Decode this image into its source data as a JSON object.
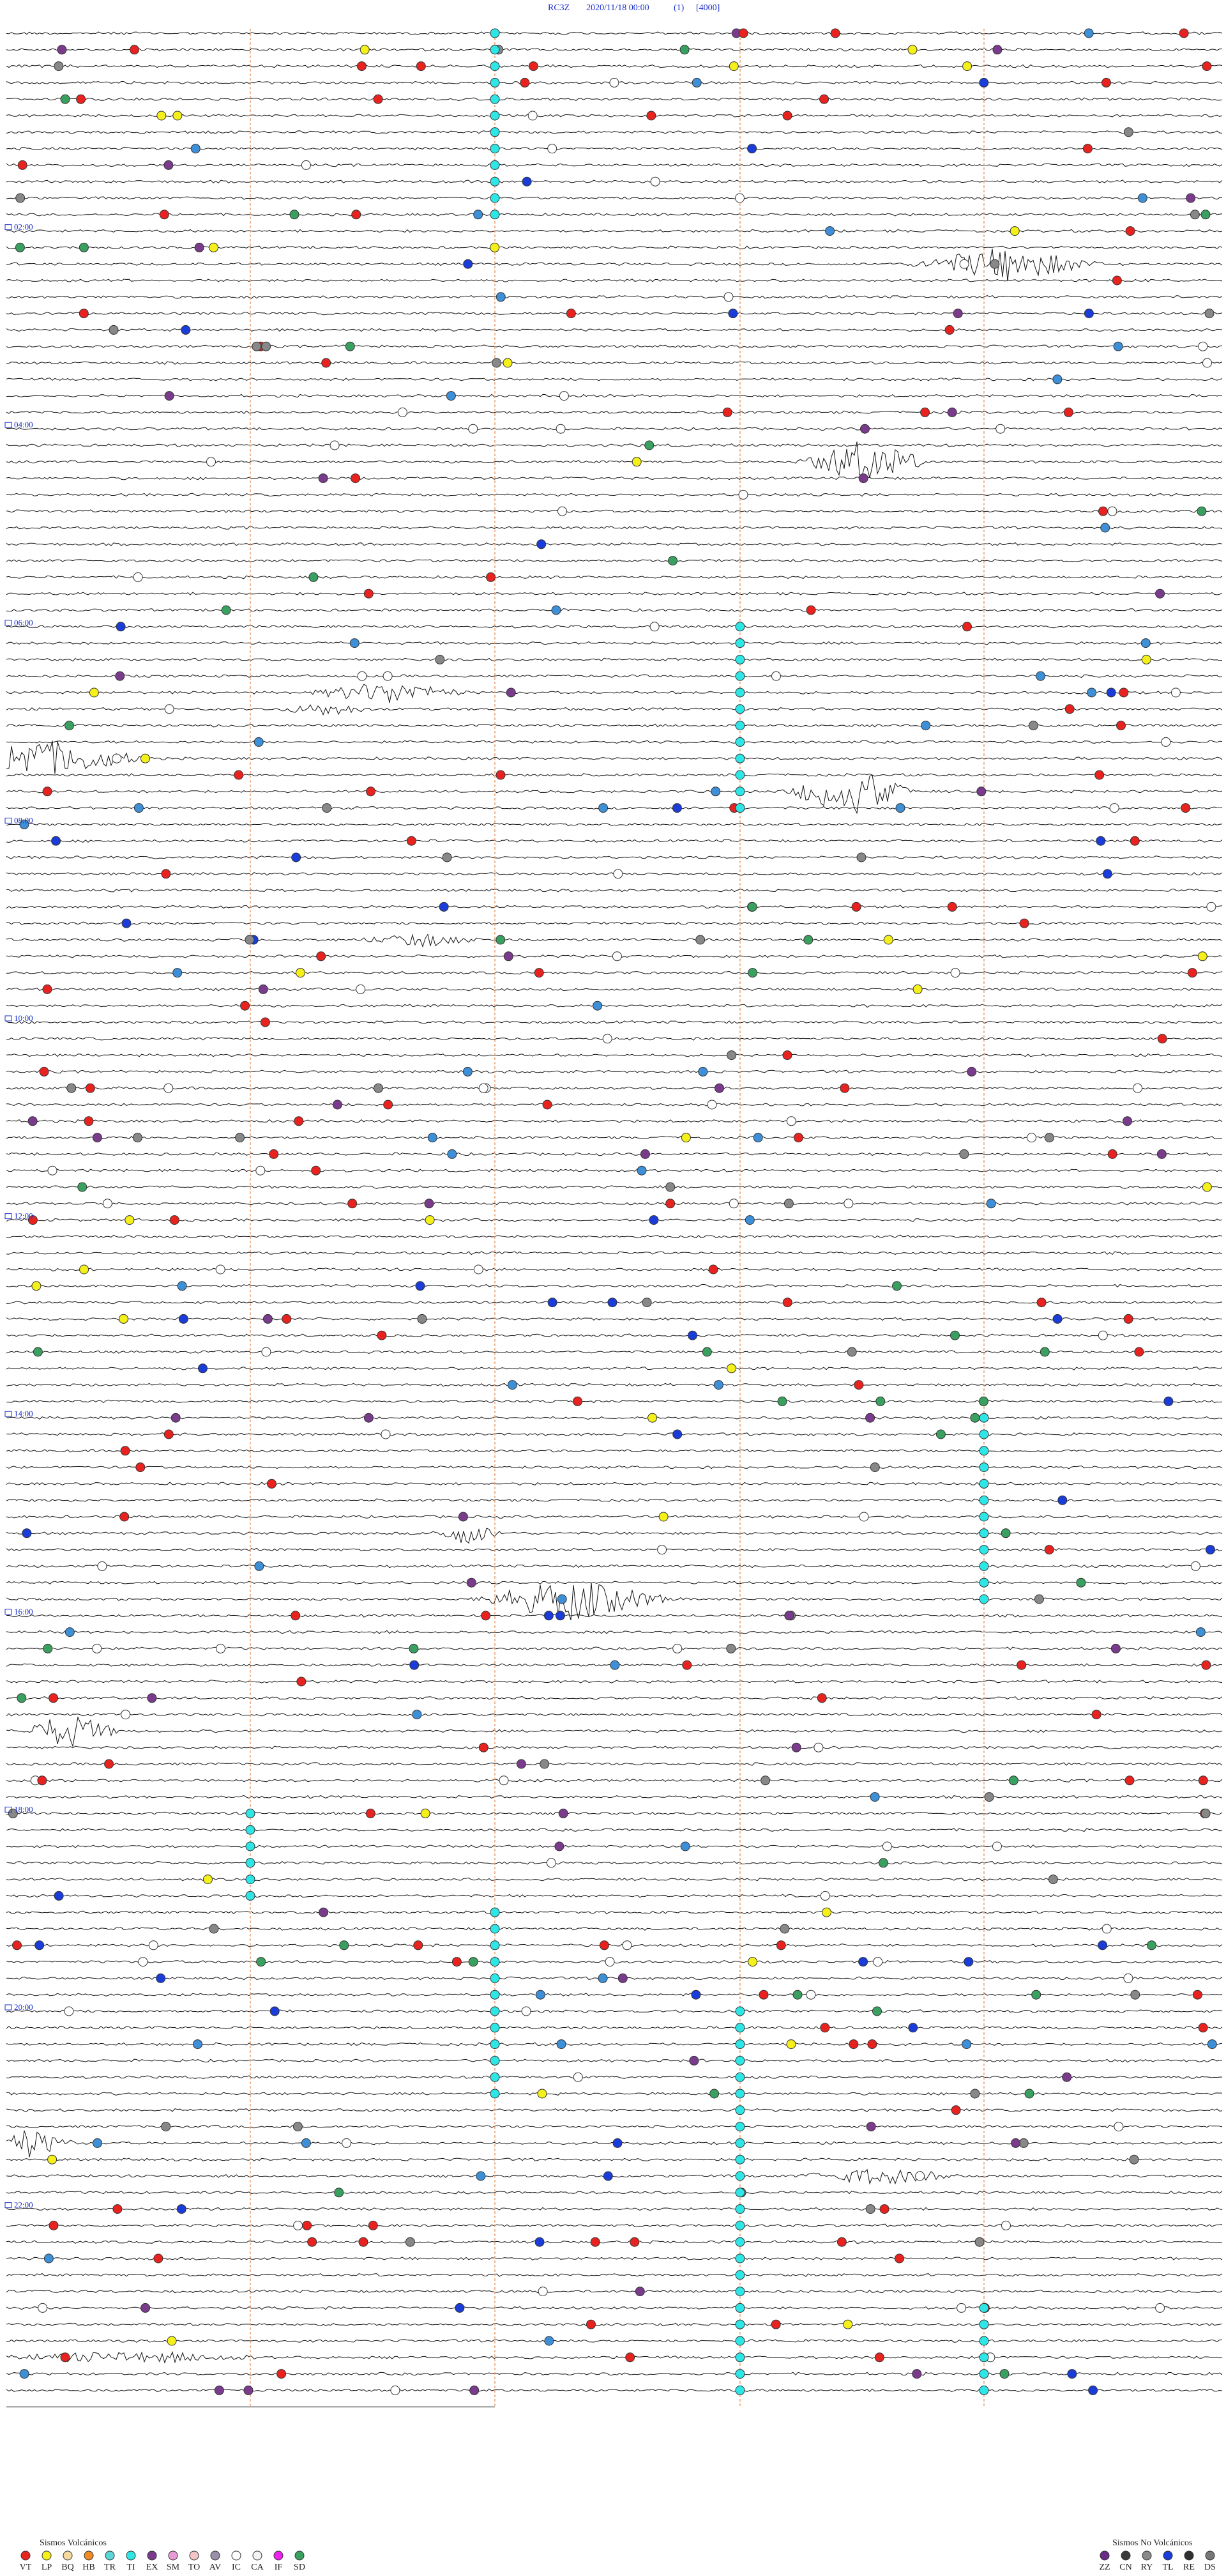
{
  "header": {
    "station": "RC3Z",
    "datetime": "2020/11/18 00:00",
    "index": "(1)",
    "scale": "[4000]"
  },
  "hour_labels": [
    "02:00",
    "04:00",
    "06:00",
    "08:00",
    "10:00",
    "12:00",
    "14:00",
    "16:00",
    "18:00",
    "20:00",
    "22:00"
  ],
  "legend": {
    "volcanic": {
      "title": "Sismos Volcánicos",
      "items": [
        {
          "code": "VT",
          "color": "#e8231f"
        },
        {
          "code": "LP",
          "color": "#f5f01a"
        },
        {
          "code": "BQ",
          "color": "#f7d9a0"
        },
        {
          "code": "HB",
          "color": "#f08a24"
        },
        {
          "code": "TR",
          "color": "#5ad6d6"
        },
        {
          "code": "TI",
          "color": "#2ee6e6"
        },
        {
          "code": "EX",
          "color": "#7a3b8c"
        },
        {
          "code": "SM",
          "color": "#e89ad6"
        },
        {
          "code": "TO",
          "color": "#f3c6c6"
        },
        {
          "code": "AV",
          "color": "#9a8fa8"
        },
        {
          "code": "IC",
          "color": "#ffffff"
        },
        {
          "code": "CA",
          "color": "#f4f4f4"
        },
        {
          "code": "IF",
          "color": "#ee22ee"
        },
        {
          "code": "SD",
          "color": "#3aa060"
        }
      ]
    },
    "non_volcanic": {
      "title": "Sismos No Volcánicos",
      "items": [
        {
          "code": "ZZ",
          "color": "#6a2c86"
        },
        {
          "code": "CN",
          "color": "#3a3a3a"
        },
        {
          "code": "RY",
          "color": "#8a8a8a"
        },
        {
          "code": "TL",
          "color": "#1a3cd8"
        },
        {
          "code": "RE",
          "color": "#303030"
        },
        {
          "code": "DS",
          "color": "#777777"
        }
      ]
    }
  }
}
